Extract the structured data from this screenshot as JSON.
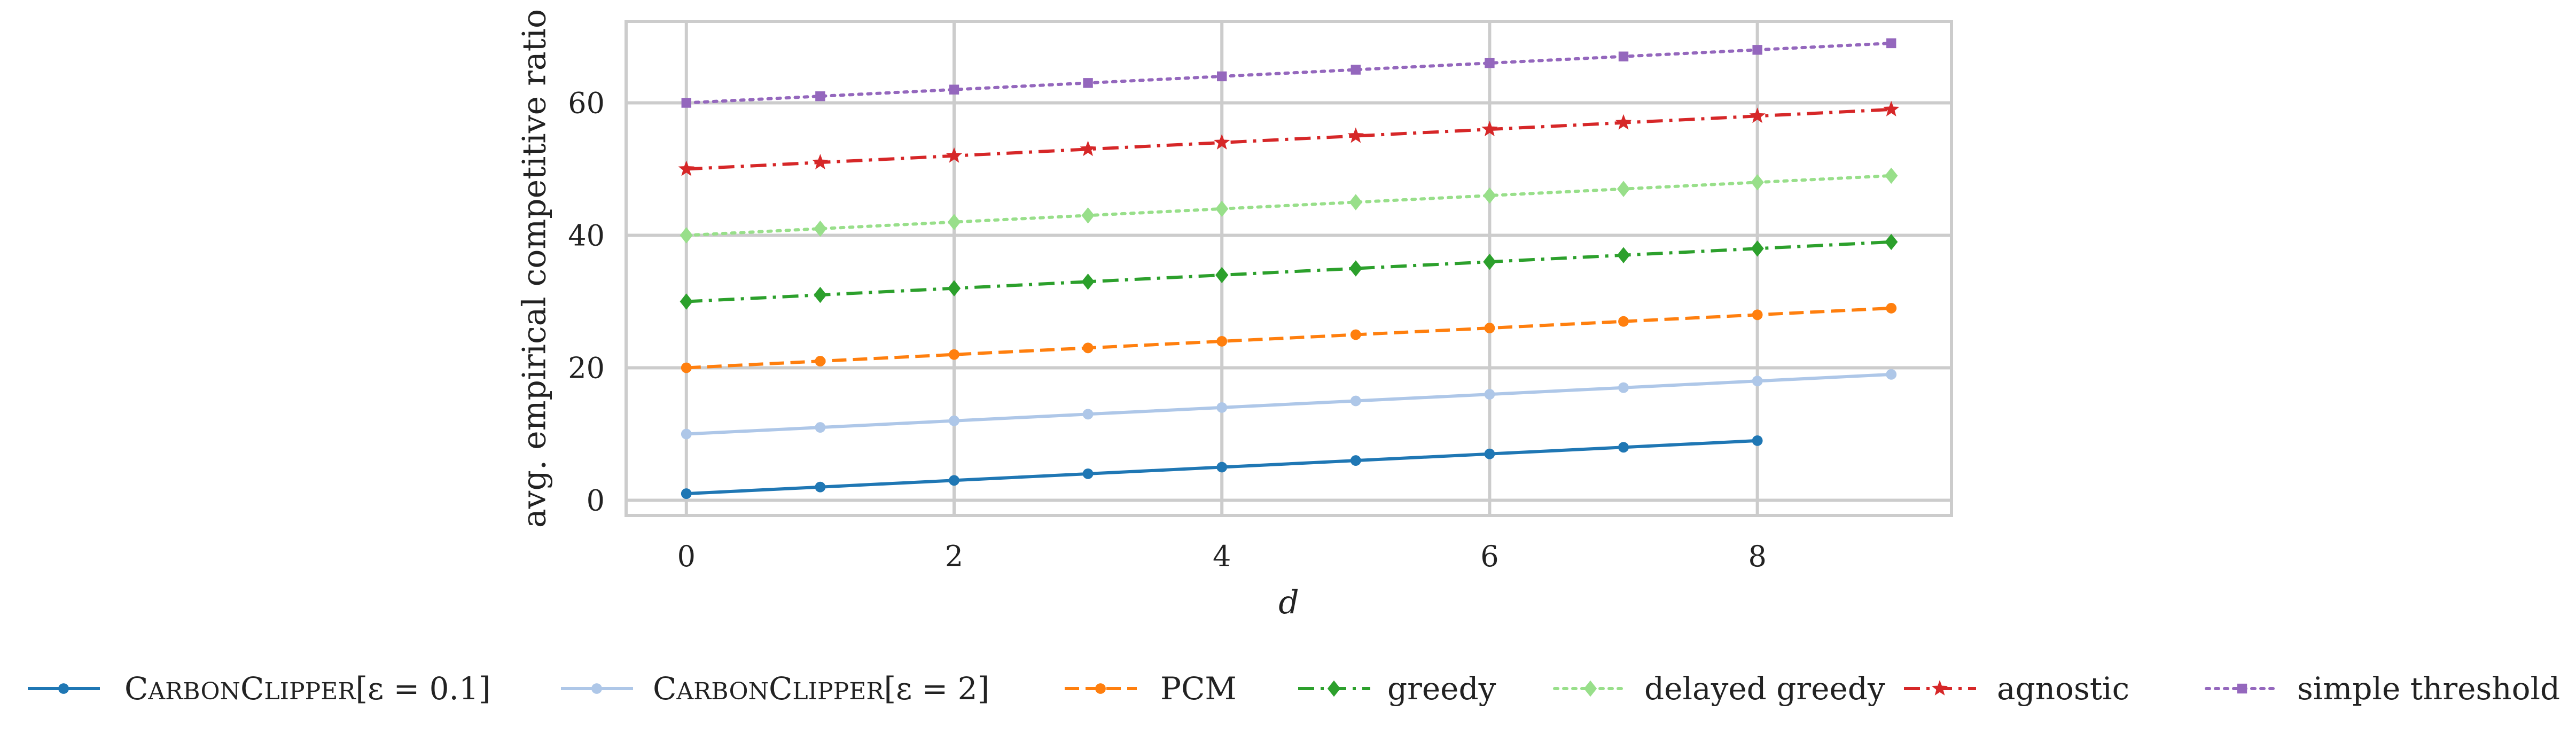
{
  "chart_data": {
    "type": "line",
    "xlabel": "d",
    "ylabel": "avg. empirical competitive ratio",
    "xlim": [
      -0.45,
      9.45
    ],
    "ylim": [
      -2.3,
      72.3
    ],
    "xticks": [
      0,
      2,
      4,
      6,
      8
    ],
    "yticks": [
      0,
      20,
      40,
      60
    ],
    "grid": true,
    "legend_position": "bottom",
    "series": [
      {
        "name": "CarbonClipper[ε = 0.1]",
        "legend_main": "Carbon",
        "legend_main2": "Clipper",
        "legend_math": "[ε = 0.1]",
        "color": "#1f77b4",
        "linestyle": "solid",
        "marker": "circle",
        "x": [
          0,
          1,
          2,
          3,
          4,
          5,
          6,
          7,
          8
        ],
        "y": [
          1,
          2,
          3,
          4,
          5,
          6,
          7,
          8,
          9
        ]
      },
      {
        "name": "CarbonClipper[ε = 2]",
        "legend_main": "Carbon",
        "legend_main2": "Clipper",
        "legend_math": "[ε = 2]",
        "color": "#aec7e8",
        "linestyle": "solid",
        "marker": "circle",
        "x": [
          0,
          1,
          2,
          3,
          4,
          5,
          6,
          7,
          8,
          9
        ],
        "y": [
          10,
          11,
          12,
          13,
          14,
          15,
          16,
          17,
          18,
          19
        ]
      },
      {
        "name": "PCM",
        "color": "#ff7f0e",
        "linestyle": "dashed",
        "marker": "circle",
        "x": [
          0,
          1,
          2,
          3,
          4,
          5,
          6,
          7,
          8,
          9
        ],
        "y": [
          20,
          21,
          22,
          23,
          24,
          25,
          26,
          27,
          28,
          29
        ]
      },
      {
        "name": "greedy",
        "color": "#2ca02c",
        "linestyle": "dashdot",
        "marker": "diamond",
        "x": [
          0,
          1,
          2,
          3,
          4,
          5,
          6,
          7,
          8,
          9
        ],
        "y": [
          30,
          31,
          32,
          33,
          34,
          35,
          36,
          37,
          38,
          39
        ]
      },
      {
        "name": "delayed greedy",
        "color": "#98df8a",
        "linestyle": "dotted",
        "marker": "diamond",
        "x": [
          0,
          1,
          2,
          3,
          4,
          5,
          6,
          7,
          8,
          9
        ],
        "y": [
          40,
          41,
          42,
          43,
          44,
          45,
          46,
          47,
          48,
          49
        ]
      },
      {
        "name": "agnostic",
        "color": "#d62728",
        "linestyle": "dashdot",
        "marker": "star",
        "x": [
          0,
          1,
          2,
          3,
          4,
          5,
          6,
          7,
          8,
          9
        ],
        "y": [
          50,
          51,
          52,
          53,
          54,
          55,
          56,
          57,
          58,
          59
        ]
      },
      {
        "name": "simple threshold",
        "color": "#9467bd",
        "linestyle": "dotted",
        "marker": "square",
        "x": [
          0,
          1,
          2,
          3,
          4,
          5,
          6,
          7,
          8,
          9
        ],
        "y": [
          60,
          61,
          62,
          63,
          64,
          65,
          66,
          67,
          68,
          69
        ]
      }
    ]
  }
}
